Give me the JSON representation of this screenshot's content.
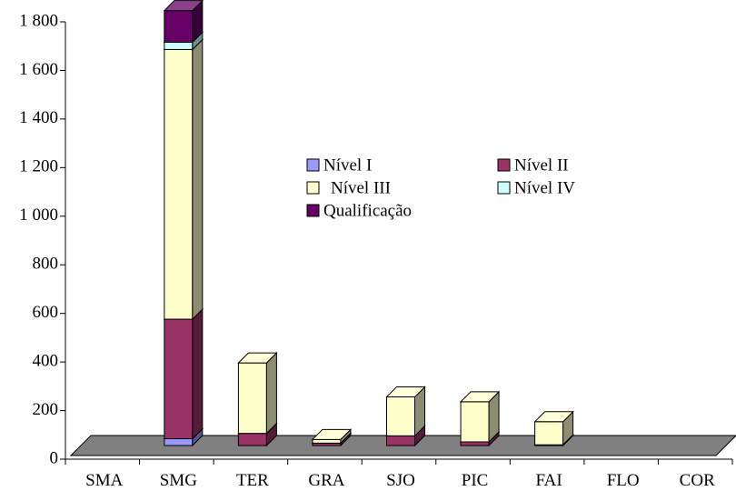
{
  "chart_data": {
    "type": "bar",
    "stacked": true,
    "three_d": true,
    "title": "",
    "xlabel": "",
    "ylabel": "",
    "ylim": [
      0,
      1800
    ],
    "yticks": [
      0,
      200,
      400,
      600,
      800,
      1000,
      1200,
      1400,
      1600,
      1800
    ],
    "ytick_labels": [
      "0",
      "200",
      "400",
      "600",
      "800",
      "1 000",
      "1 200",
      "1 400",
      "1 600",
      "1 800"
    ],
    "categories": [
      "SMA",
      "SMG",
      "TER",
      "GRA",
      "SJO",
      "PIC",
      "FAI",
      "FLO",
      "COR"
    ],
    "grid": false,
    "legend_position": "center",
    "series": [
      {
        "name": "Nível I",
        "color": "#9999ff",
        "values": [
          0,
          28,
          0,
          0,
          0,
          0,
          0,
          0,
          0
        ]
      },
      {
        "name": "Nível II",
        "color": "#993366",
        "values": [
          0,
          492,
          50,
          10,
          40,
          15,
          3,
          0,
          0
        ]
      },
      {
        "name": "Nível III",
        "color": "#ffffcc",
        "values": [
          0,
          1110,
          290,
          15,
          160,
          165,
          95,
          0,
          0
        ]
      },
      {
        "name": "Nível IV",
        "color": "#ccffff",
        "values": [
          0,
          30,
          0,
          0,
          0,
          0,
          0,
          0,
          0
        ]
      },
      {
        "name": "Qualificação",
        "color": "#660066",
        "values": [
          0,
          130,
          0,
          0,
          0,
          0,
          0,
          0,
          0
        ]
      }
    ]
  }
}
